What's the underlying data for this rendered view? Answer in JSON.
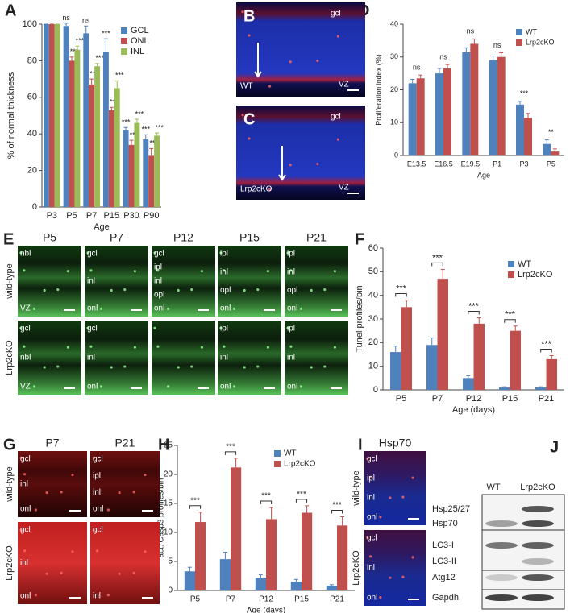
{
  "chart_data": [
    {
      "type": "bar",
      "panel": "A",
      "ylabel": "% of normal thickness",
      "xlabel": "Age",
      "categories": [
        "P3",
        "P5",
        "P7",
        "P15",
        "P30",
        "P90"
      ],
      "series": [
        {
          "name": "GCL",
          "color": "#4f81bd",
          "values": [
            100,
            99,
            95,
            85,
            42,
            37
          ],
          "errors": [
            0,
            1.5,
            4,
            7,
            1.5,
            2.5
          ],
          "annotations": [
            null,
            "ns",
            "ns",
            "***",
            "***",
            "***"
          ]
        },
        {
          "name": "ONL",
          "color": "#c0504d",
          "values": [
            100,
            80,
            67,
            53,
            34,
            28
          ],
          "errors": [
            0,
            2,
            3,
            1.5,
            2.5,
            4
          ],
          "annotations": [
            null,
            "***",
            "***",
            "***",
            "***",
            "***"
          ]
        },
        {
          "name": "INL",
          "color": "#9bbb59",
          "values": [
            100,
            86,
            77,
            65,
            46,
            39
          ],
          "errors": [
            0,
            2,
            1.5,
            4,
            2,
            1.5
          ],
          "annotations": [
            null,
            "***",
            "***",
            "***",
            "***",
            "***"
          ]
        }
      ],
      "ylim": [
        0,
        100
      ],
      "yticks": [
        0,
        20,
        40,
        60,
        80,
        100
      ],
      "legend": "upper right"
    },
    {
      "type": "bar",
      "panel": "D",
      "ylabel": "Proliferation index (%)",
      "xlabel": "Age",
      "categories": [
        "E13.5",
        "E16.5",
        "E19.5",
        "P1",
        "P3",
        "P5"
      ],
      "series": [
        {
          "name": "WT",
          "color": "#4f81bd",
          "values": [
            22,
            25,
            31.5,
            29,
            15.5,
            3.5
          ],
          "errors": [
            1.2,
            1.5,
            1.3,
            1.3,
            1,
            1.3
          ]
        },
        {
          "name": "Lrp2cKO",
          "color": "#c0504d",
          "values": [
            23.5,
            26.5,
            34,
            30,
            11.5,
            1.2
          ],
          "errors": [
            1,
            1.2,
            1.5,
            1.3,
            1.3,
            0.8
          ]
        }
      ],
      "annotations": [
        "ns",
        "ns",
        "ns",
        "ns",
        "***",
        "**"
      ],
      "ylim": [
        0,
        40
      ],
      "yticks": [
        0,
        10,
        20,
        30,
        40
      ],
      "legend": "upper right"
    },
    {
      "type": "bar",
      "panel": "F",
      "ylabel": "Tunel profiles/bin",
      "xlabel": "Age (days)",
      "categories": [
        "P5",
        "P7",
        "P12",
        "P15",
        "P21"
      ],
      "series": [
        {
          "name": "WT",
          "color": "#4f81bd",
          "values": [
            16,
            19,
            5,
            1,
            1
          ],
          "errors": [
            2.5,
            3,
            1,
            0.3,
            0.3
          ]
        },
        {
          "name": "Lrp2cKO",
          "color": "#c0504d",
          "values": [
            35,
            47,
            28,
            25,
            13
          ],
          "errors": [
            3,
            4,
            2.5,
            2,
            1.5
          ]
        }
      ],
      "annotations": [
        "***",
        "***",
        "***",
        "***",
        "***"
      ],
      "brackets": true,
      "ylim": [
        0,
        60
      ],
      "yticks": [
        0,
        10,
        20,
        30,
        40,
        50,
        60
      ],
      "legend": "upper right"
    },
    {
      "type": "bar",
      "panel": "H",
      "ylabel": "act. Casp3 profiles/bin",
      "xlabel": "Age (days)",
      "categories": [
        "P5",
        "P7",
        "P12",
        "P15",
        "P21"
      ],
      "series": [
        {
          "name": "WT",
          "color": "#4f81bd",
          "values": [
            3.3,
            5.4,
            2.2,
            1.5,
            0.8
          ],
          "errors": [
            0.7,
            1.2,
            0.5,
            0.4,
            0.2
          ]
        },
        {
          "name": "Lrp2cKO",
          "color": "#c0504d",
          "values": [
            11.8,
            21.2,
            12.3,
            13.4,
            11.2
          ],
          "errors": [
            1.7,
            1.6,
            2,
            1.2,
            1.5
          ]
        }
      ],
      "annotations": [
        "***",
        "***",
        "***",
        "***",
        "***"
      ],
      "brackets": true,
      "ylim": [
        0,
        25
      ],
      "yticks": [
        0,
        5,
        10,
        15,
        20,
        25
      ],
      "legend": "upper center"
    }
  ],
  "images": {
    "B": {
      "panel": "B",
      "labels": [
        "gcl",
        "WT",
        "VZ"
      ]
    },
    "C": {
      "panel": "C",
      "labels": [
        "gcl",
        "Lrp2cKO",
        "VZ"
      ]
    },
    "E": {
      "panel": "E",
      "columns": [
        "P5",
        "P7",
        "P12",
        "P15",
        "P21"
      ],
      "rows": [
        "wild-type",
        "Lrp2cKO"
      ],
      "labels": [
        [
          [
            "nbl",
            "VZ"
          ],
          [
            "gcl",
            "inl",
            "onl"
          ],
          [
            "gcl",
            "ipl",
            "inl",
            "opl",
            "onl"
          ],
          [
            "ipl",
            "inl",
            "opl",
            "onl"
          ],
          [
            "ipl",
            "inl",
            "opl",
            "onl"
          ]
        ],
        [
          [
            "gcl",
            "nbl",
            "VZ"
          ],
          [
            "gcl",
            "inl",
            "onl"
          ],
          [],
          [
            "ipl",
            "inl",
            "onl"
          ],
          [
            "ipl",
            "inl",
            "onl"
          ]
        ]
      ]
    },
    "G": {
      "panel": "G",
      "columns": [
        "P7",
        "P21"
      ],
      "rows": [
        "wild-type",
        "Lrp2cKO"
      ],
      "labels": [
        [
          [
            "gcl",
            "inl",
            "onl"
          ],
          [
            "gcl",
            "ipl",
            "inl",
            "onl"
          ]
        ],
        [
          [
            "gcl",
            "inl",
            "onl"
          ],
          [
            "gcl",
            "inl"
          ]
        ]
      ]
    },
    "I": {
      "panel": "I",
      "columns": [
        "Hsp70"
      ],
      "rows": [
        "wild-type",
        "Lrp2cKO"
      ],
      "labels": [
        [
          [
            "gcl",
            "ipl",
            "inl",
            "onl"
          ]
        ],
        [
          [
            "gcl",
            "inl",
            "onl"
          ]
        ]
      ]
    },
    "J": {
      "panel": "J",
      "columns": [
        "WT",
        "Lrp2cKO"
      ],
      "rows": [
        "Hsp25/27",
        "Hsp70",
        "LC3-I",
        "LC3-II",
        "Atg12",
        "Gapdh"
      ]
    }
  }
}
